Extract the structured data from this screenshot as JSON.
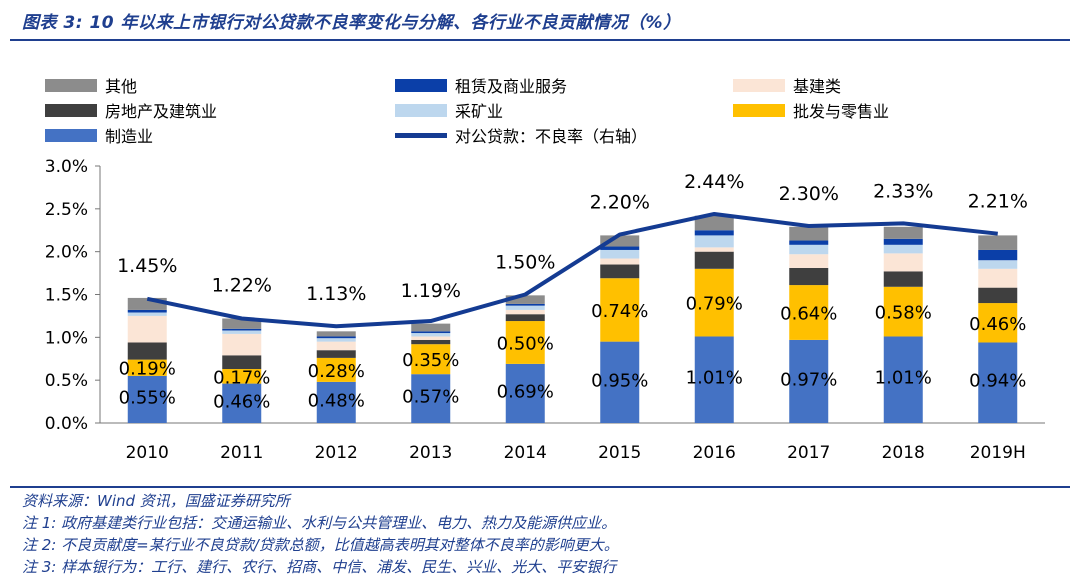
{
  "title": "图表 3:  10 年以来上市银行对公贷款不良率变化与分解、各行业不良贡献情况（%）",
  "colors": {
    "other": "#8c8c8c",
    "realestate": "#3f3f3f",
    "manufacturing": "#4472c4",
    "leasing": "#0b3fa8",
    "mining": "#bdd7ee",
    "infrastructure": "#fbe5d6",
    "wholesale": "#ffc000",
    "line": "#143b92",
    "title": "#1f3f8f"
  },
  "legend": [
    {
      "label": "其他",
      "key": "other",
      "kind": "bar"
    },
    {
      "label": "房地产及建筑业",
      "key": "realestate",
      "kind": "bar"
    },
    {
      "label": "制造业",
      "key": "manufacturing",
      "kind": "bar"
    },
    {
      "label": "租赁及商业服务",
      "key": "leasing",
      "kind": "bar"
    },
    {
      "label": "采矿业",
      "key": "mining",
      "kind": "bar"
    },
    {
      "label": "对公贷款：不良率（右轴）",
      "key": "line",
      "kind": "line"
    },
    {
      "label": "基建类",
      "key": "infrastructure",
      "kind": "bar"
    },
    {
      "label": "批发与零售业",
      "key": "wholesale",
      "kind": "bar"
    }
  ],
  "chart_data": {
    "type": "bar",
    "stacked": true,
    "categories": [
      "2010",
      "2011",
      "2012",
      "2013",
      "2014",
      "2015",
      "2016",
      "2017",
      "2018",
      "2019H"
    ],
    "ylim": [
      0,
      3.0
    ],
    "ytick_labels": [
      "0.0%",
      "0.5%",
      "1.0%",
      "1.5%",
      "2.0%",
      "2.5%",
      "3.0%"
    ],
    "series": [
      {
        "name": "制造业",
        "key": "manufacturing",
        "values": [
          0.55,
          0.46,
          0.48,
          0.57,
          0.69,
          0.95,
          1.01,
          0.97,
          1.01,
          0.94
        ],
        "labels": [
          "0.55%",
          "0.46%",
          "0.48%",
          "0.57%",
          "0.69%",
          "0.95%",
          "1.01%",
          "0.97%",
          "1.01%",
          "0.94%"
        ]
      },
      {
        "name": "批发与零售业",
        "key": "wholesale",
        "values": [
          0.19,
          0.17,
          0.28,
          0.35,
          0.5,
          0.74,
          0.79,
          0.64,
          0.58,
          0.46
        ],
        "labels": [
          "0.19%",
          "0.17%",
          "0.28%",
          "0.35%",
          "0.50%",
          "0.74%",
          "0.79%",
          "0.64%",
          "0.58%",
          "0.46%"
        ]
      },
      {
        "name": "房地产及建筑业",
        "key": "realestate",
        "values": [
          0.2,
          0.16,
          0.09,
          0.05,
          0.08,
          0.16,
          0.2,
          0.2,
          0.18,
          0.18
        ]
      },
      {
        "name": "基建类",
        "key": "infrastructure",
        "values": [
          0.31,
          0.25,
          0.1,
          0.04,
          0.05,
          0.07,
          0.05,
          0.16,
          0.21,
          0.22
        ]
      },
      {
        "name": "采矿业",
        "key": "mining",
        "values": [
          0.04,
          0.04,
          0.04,
          0.04,
          0.05,
          0.1,
          0.14,
          0.11,
          0.1,
          0.1
        ]
      },
      {
        "name": "租赁及商业服务",
        "key": "leasing",
        "values": [
          0.03,
          0.02,
          0.02,
          0.02,
          0.02,
          0.04,
          0.06,
          0.05,
          0.07,
          0.12
        ]
      },
      {
        "name": "其他",
        "key": "other",
        "values": [
          0.14,
          0.12,
          0.06,
          0.09,
          0.1,
          0.13,
          0.17,
          0.16,
          0.14,
          0.17
        ]
      }
    ],
    "line": {
      "name": "对公贷款：不良率（右轴）",
      "values": [
        1.45,
        1.22,
        1.13,
        1.19,
        1.5,
        2.2,
        2.44,
        2.3,
        2.33,
        2.21
      ],
      "labels": [
        "1.45%",
        "1.22%",
        "1.13%",
        "1.19%",
        "1.50%",
        "2.20%",
        "2.44%",
        "2.30%",
        "2.33%",
        "2.21%"
      ]
    },
    "grid": false,
    "legend_position": "top"
  },
  "notes": {
    "source": "资料来源：Wind 资讯，国盛证券研究所",
    "note1": "注 1:  政府基建类行业包括：交通运输业、水利与公共管理业、电力、热力及能源供应业。",
    "note2": "注 2:  不良贡献度=某行业不良贷款/贷款总额，比值越高表明其对整体不良率的影响更大。",
    "note3": "注 3:  样本银行为：工行、建行、农行、招商、中信、浦发、民生、兴业、光大、平安银行"
  }
}
